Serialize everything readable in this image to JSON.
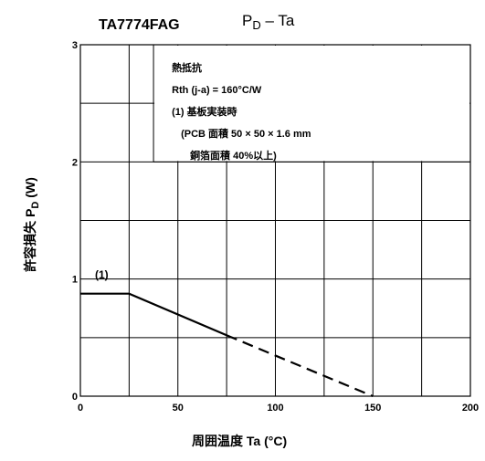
{
  "part_number": "TA7774FAG",
  "chart_data": {
    "type": "line",
    "title": "P_D – Ta",
    "xlabel": "周囲温度   Ta   (°C)",
    "ylabel": "許容損失   P_D   (W)",
    "xlim": [
      0,
      200
    ],
    "ylim": [
      0,
      3
    ],
    "x_ticks": [
      "0",
      "50",
      "100",
      "150",
      "200"
    ],
    "y_ticks": [
      "0",
      "1",
      "2",
      "3"
    ],
    "grid": true,
    "series": [
      {
        "name": "(1)",
        "style": "solid",
        "x": [
          0,
          25,
          75
        ],
        "y": [
          0.875,
          0.875,
          0.52
        ]
      },
      {
        "style": "dashed",
        "x": [
          75,
          150
        ],
        "y": [
          0.52,
          0
        ]
      }
    ],
    "annotations": [
      "熱抵抗",
      "Rth (j-a) = 160°C/W",
      "(1)  基板実装時",
      "(PCB 面積  50 × 50 × 1.6 mm",
      "銅箔面積   40%以上)"
    ]
  }
}
